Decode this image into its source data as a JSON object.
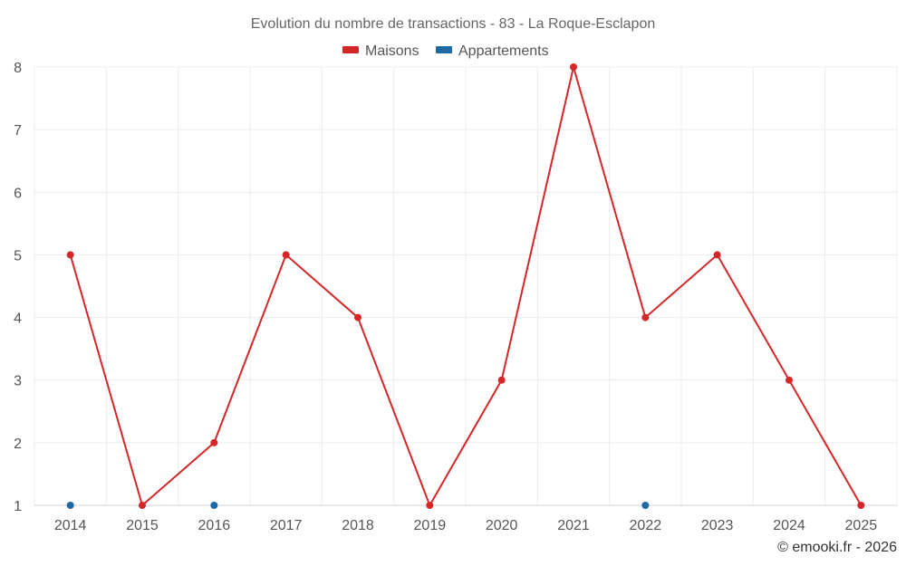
{
  "chart_data": {
    "type": "line",
    "title": "Evolution du nombre de transactions - 83 - La Roque-Esclapon",
    "categories": [
      "2014",
      "2015",
      "2016",
      "2017",
      "2018",
      "2019",
      "2020",
      "2021",
      "2022",
      "2023",
      "2024",
      "2025"
    ],
    "series": [
      {
        "name": "Maisons",
        "color": "#d62728",
        "values": [
          5,
          1,
          2,
          5,
          4,
          1,
          3,
          8,
          4,
          5,
          3,
          1
        ],
        "line": true
      },
      {
        "name": "Appartements",
        "color": "#1f6aa5",
        "values": [
          1,
          null,
          1,
          null,
          null,
          null,
          null,
          null,
          1,
          null,
          null,
          null
        ],
        "line": false
      }
    ],
    "yticks": [
      1,
      2,
      3,
      4,
      5,
      6,
      7,
      8
    ],
    "ylim": [
      1,
      8
    ],
    "xlabel": "",
    "ylabel": "",
    "grid": true,
    "legend_position": "top-center"
  },
  "credit": "© emooki.fr - 2026"
}
